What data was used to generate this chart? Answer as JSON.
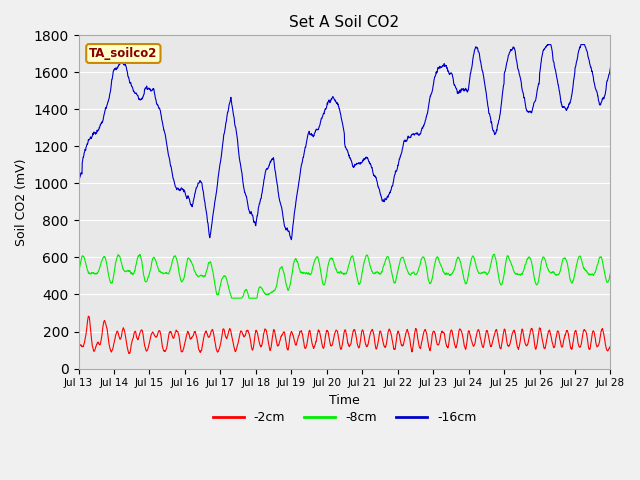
{
  "title": "Set A Soil CO2",
  "xlabel": "Time",
  "ylabel": "Soil CO2 (mV)",
  "legend_label": "TA_soilco2",
  "ylim": [
    0,
    1800
  ],
  "yticks": [
    0,
    200,
    400,
    600,
    800,
    1000,
    1200,
    1400,
    1600,
    1800
  ],
  "xtick_labels": [
    "Jul 13",
    "Jul 14",
    "Jul 15",
    "Jul 16",
    "Jul 17",
    "Jul 18",
    "Jul 19",
    "Jul 20",
    "Jul 21",
    "Jul 22",
    "Jul 23",
    "Jul 24",
    "Jul 25",
    "Jul 26",
    "Jul 27",
    "Jul 28"
  ],
  "series_colors": [
    "#ff0000",
    "#00ee00",
    "#0000cc"
  ],
  "series_labels": [
    "-2cm",
    "-8cm",
    "-16cm"
  ],
  "background_color": "#f0f0f0",
  "plot_bg_color": "#e8e8e8",
  "legend_box_color": "#ffffcc",
  "legend_box_edge": "#cc8800",
  "legend_text_color": "#880000",
  "grid_color": "#ffffff",
  "n_points": 2000,
  "seed": 7
}
